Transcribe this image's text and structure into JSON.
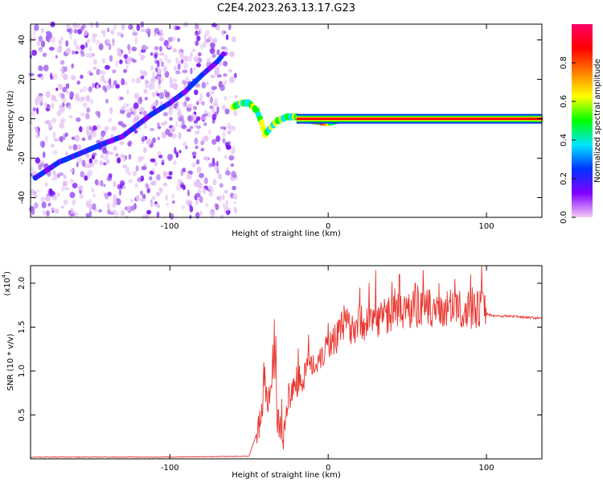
{
  "figure_title": "C2E4.2023.263.13.17.G23",
  "chart_data": [
    {
      "type": "heatmap",
      "title": "",
      "xlabel": "Height of straight line (km)",
      "ylabel": "Frequency (Hz)",
      "xlim": [
        -188,
        135
      ],
      "ylim": [
        -50,
        48
      ],
      "x_ticks": [
        -100,
        0,
        100
      ],
      "y_ticks": [
        -40,
        -20,
        0,
        20,
        40
      ],
      "noise_region_x": [
        -188,
        -58
      ],
      "signal_trace": [
        {
          "x": -185,
          "y": -30
        },
        {
          "x": -170,
          "y": -22
        },
        {
          "x": -155,
          "y": -17
        },
        {
          "x": -140,
          "y": -12
        },
        {
          "x": -130,
          "y": -9
        },
        {
          "x": -112,
          "y": 2
        },
        {
          "x": -100,
          "y": 8
        },
        {
          "x": -90,
          "y": 14
        },
        {
          "x": -80,
          "y": 22
        },
        {
          "x": -70,
          "y": 29
        },
        {
          "x": -65,
          "y": 34
        },
        {
          "x": -60,
          "y": 6
        },
        {
          "x": -55,
          "y": 8
        },
        {
          "x": -50,
          "y": 8
        },
        {
          "x": -45,
          "y": 4
        },
        {
          "x": -42,
          "y": -2
        },
        {
          "x": -40,
          "y": -8
        },
        {
          "x": -36,
          "y": -4
        },
        {
          "x": -32,
          "y": -1
        },
        {
          "x": -26,
          "y": 1
        },
        {
          "x": -20,
          "y": 1
        },
        {
          "x": -10,
          "y": -1
        },
        {
          "x": 0,
          "y": -2
        },
        {
          "x": 10,
          "y": 0
        },
        {
          "x": 30,
          "y": 0
        },
        {
          "x": 60,
          "y": 0
        },
        {
          "x": 90,
          "y": 0
        },
        {
          "x": 135,
          "y": 0
        }
      ],
      "colorbar": {
        "label": "Normalized spectral amplitude",
        "range": [
          0,
          1
        ],
        "ticks": [
          0.0,
          0.2,
          0.4,
          0.6,
          0.8
        ],
        "tick_labels": [
          "0.0",
          "0.2",
          "0.4",
          "0.6",
          "0.8"
        ],
        "colors": [
          "#f5ccf5",
          "#8000ff",
          "#0033ff",
          "#00e5ff",
          "#00ff00",
          "#ffff00",
          "#ff8000",
          "#ff0000",
          "#ff0066"
        ]
      }
    },
    {
      "type": "line",
      "title": "",
      "xlabel": "Height of straight line (km)",
      "ylabel": "SNR (10 * v/v)",
      "y_multiplier": "(x10",
      "y_multiplier_exp": "4",
      "xlim": [
        -188,
        135
      ],
      "ylim": [
        0,
        2.2
      ],
      "x_ticks": [
        -100,
        0,
        100
      ],
      "y_ticks": [
        0.5,
        1.0,
        1.5,
        2.0
      ],
      "y_tick_labels": [
        "0.5",
        "1.0",
        "1.5",
        "2.0"
      ],
      "line_color": "#e8352e",
      "series": [
        {
          "x": [
            -188,
            -150,
            -100,
            -50,
            -45,
            -42,
            -40,
            -38,
            -36,
            -34,
            -32,
            -30,
            -28,
            -26,
            -24,
            -22,
            -20,
            -16,
            -12,
            -8,
            -4,
            0,
            5,
            10,
            20,
            30,
            40,
            50,
            60,
            70,
            80,
            90,
            98,
            100,
            105,
            120,
            135
          ],
          "y": [
            0.02,
            0.02,
            0.02,
            0.03,
            0.3,
            0.55,
            0.9,
            0.6,
            0.8,
            1.2,
            0.45,
            0.3,
            0.25,
            0.6,
            0.7,
            0.8,
            0.85,
            0.95,
            1.05,
            1.1,
            1.2,
            1.3,
            1.4,
            1.5,
            1.55,
            1.6,
            1.65,
            1.7,
            1.7,
            1.72,
            1.7,
            1.7,
            1.72,
            1.65,
            1.63,
            1.62,
            1.6
          ],
          "spikes": [
            {
              "x": -40,
              "y": 1.05
            },
            {
              "x": -35,
              "y": 1.3
            },
            {
              "x": -33,
              "y": 1.4
            },
            {
              "x": -20,
              "y": 1.05
            },
            {
              "x": -10,
              "y": 1.3
            },
            {
              "x": 0,
              "y": 1.55
            },
            {
              "x": 10,
              "y": 1.75
            },
            {
              "x": 20,
              "y": 1.95
            },
            {
              "x": 30,
              "y": 2.15
            },
            {
              "x": 45,
              "y": 2.1
            },
            {
              "x": 55,
              "y": 2.0
            },
            {
              "x": 60,
              "y": 2.15
            },
            {
              "x": 70,
              "y": 2.0
            },
            {
              "x": 80,
              "y": 2.05
            },
            {
              "x": 90,
              "y": 2.1
            },
            {
              "x": 97,
              "y": 2.2
            }
          ]
        }
      ]
    }
  ]
}
